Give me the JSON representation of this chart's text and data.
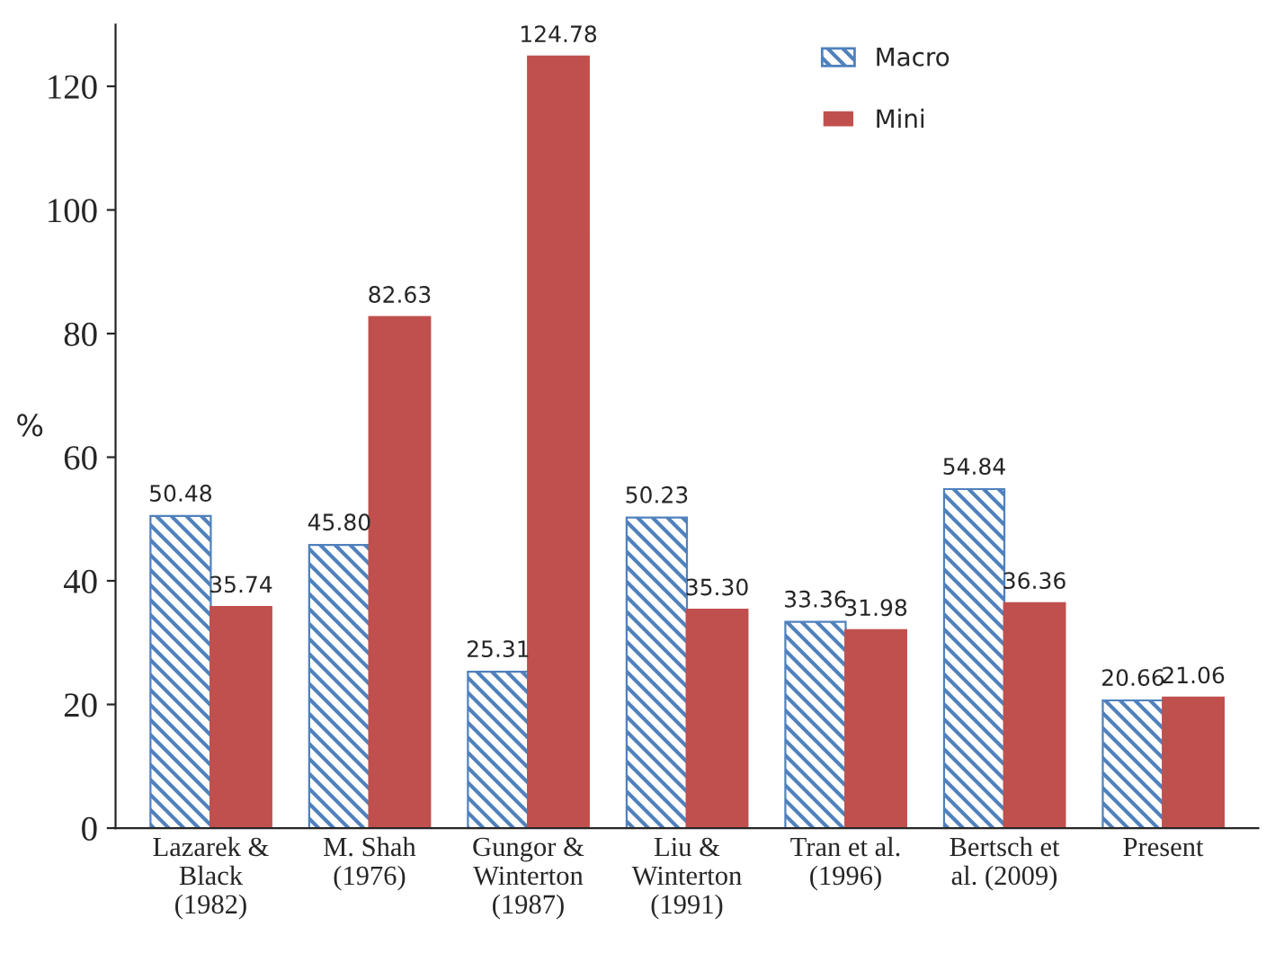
{
  "chart_data": {
    "type": "bar",
    "ylabel": "%",
    "categories": [
      "Lazarek &\nBlack\n(1982)",
      "M. Shah\n(1976)",
      "Gungor &\nWinterton\n(1987)",
      "Liu &\nWinterton\n(1991)",
      "Tran et al.\n(1996)",
      "Bertsch et\nal. (2009)",
      "Present"
    ],
    "series": [
      {
        "name": "Macro",
        "color": "#4f81bd",
        "values": [
          50.48,
          45.8,
          25.31,
          50.23,
          33.36,
          54.84,
          20.66
        ],
        "value_labels": [
          "50.48",
          "45.80",
          "25.31",
          "50.23",
          "33.36",
          "54.84",
          "20.66"
        ]
      },
      {
        "name": "Mini",
        "color": "#c0504d",
        "values": [
          35.74,
          82.63,
          124.78,
          35.3,
          31.98,
          36.36,
          21.06
        ],
        "value_labels": [
          "35.74",
          "82.63",
          "124.78",
          "35.30",
          "31.98",
          "36.36",
          "21.06"
        ]
      }
    ],
    "ylim": [
      0,
      130
    ],
    "yticks": [
      0,
      20,
      40,
      60,
      80,
      100,
      120
    ],
    "grid": false,
    "legend": "top right"
  }
}
